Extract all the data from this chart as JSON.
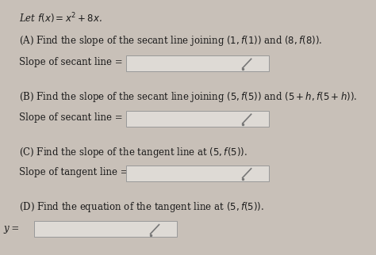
{
  "background_color": "#c8c0b8",
  "panel_color": "#e8e4e0",
  "text_color": "#1a1a1a",
  "title_line": "Let $f(x) = x^2 + 8x$.",
  "part_A_line1": "(A) Find the slope of the secant line joining $(1, f(1))$ and $(8, f(8))$.",
  "part_A_line2": "Slope of secant line =",
  "part_B_line1": "(B) Find the slope of the secant line joining $(5, f(5))$ and $(5 + h, f(5 + h))$.",
  "part_B_line2": "Slope of secant line =",
  "part_C_line1": "(C) Find the slope of the tangent line at $(5, f(5))$.",
  "part_C_line2": "Slope of tangent line =",
  "part_D_line1": "(D) Find the equation of the tangent line at $(5, f(5))$.",
  "part_D_line2": "y =",
  "box_facecolor": "#dedad5",
  "box_edgecolor": "#999999",
  "font_size_main": 8.5,
  "font_size_small": 8.5
}
